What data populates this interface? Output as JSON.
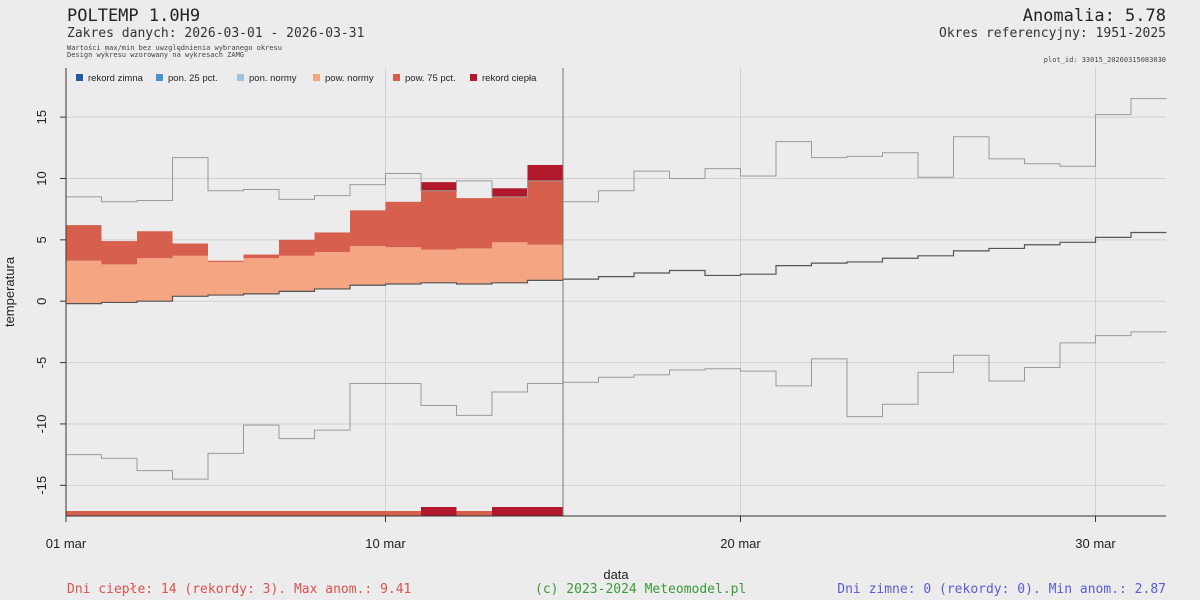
{
  "header": {
    "title": "POLTEMP 1.0H9",
    "range": "Zakres danych: 2026-03-01 - 2026-03-31",
    "note1": "Wartości max/min bez uwzględnienia wybranego okresu",
    "note2": "Design wykresu wzorowany na wykresach ZAMG",
    "anomaly": "Anomalia: 5.78",
    "reference": "Okres referencyjny: 1951-2025",
    "plot_id": "plot_id: 33015_20260315083030"
  },
  "footer": {
    "warm": "Dni ciepłe:  14 (rekordy: 3). Max anom.: 9.41",
    "copyright": "(c) 2023-2024 Meteomodel.pl",
    "cold": "Dni zimne:  0 (rekordy: 0). Min anom.: 2.87"
  },
  "colors": {
    "rekord_zimna": "#1f5aa6",
    "pon_25": "#4a92c8",
    "pon_normy": "#9cc3e2",
    "pow_normy": "#f4a582",
    "pow_75": "#d6604d",
    "rekord_ciepla": "#b2182b",
    "envelope": "#9a9a9a",
    "normal": "#555555"
  },
  "chart_data": {
    "type": "area",
    "xlabel": "data",
    "ylabel": "temperatura",
    "ylim": [
      -17.5,
      19
    ],
    "yticks": [
      -15,
      -10,
      -5,
      0,
      5,
      10,
      15
    ],
    "xticks": [
      {
        "day": 1,
        "label": "01 mar"
      },
      {
        "day": 10,
        "label": "10 mar"
      },
      {
        "day": 20,
        "label": "20 mar"
      },
      {
        "day": 30,
        "label": "30 mar"
      }
    ],
    "legend": [
      {
        "key": "rekord_zimna",
        "label": "rekord zimna"
      },
      {
        "key": "pon_25",
        "label": "pon. 25 pct."
      },
      {
        "key": "pon_normy",
        "label": "pon. normy"
      },
      {
        "key": "pow_normy",
        "label": "pow. normy"
      },
      {
        "key": "pow_75",
        "label": "pow. 75 pct."
      },
      {
        "key": "rekord_ciepla",
        "label": "rekord ciepła"
      }
    ],
    "legend_position": "top-left",
    "days": [
      1,
      2,
      3,
      4,
      5,
      6,
      7,
      8,
      9,
      10,
      11,
      12,
      13,
      14,
      15,
      16,
      17,
      18,
      19,
      20,
      21,
      22,
      23,
      24,
      25,
      26,
      27,
      28,
      29,
      30,
      31
    ],
    "observed": [
      6.2,
      4.9,
      5.7,
      4.7,
      3.3,
      3.8,
      5.0,
      5.6,
      7.4,
      8.1,
      9.7,
      8.4,
      9.2,
      11.1
    ],
    "normal": [
      -0.2,
      -0.1,
      0.0,
      0.4,
      0.5,
      0.6,
      0.8,
      1.0,
      1.3,
      1.4,
      1.5,
      1.4,
      1.5,
      1.7,
      1.8,
      2.0,
      2.3,
      2.5,
      2.1,
      2.2,
      2.9,
      3.1,
      3.2,
      3.5,
      3.7,
      4.1,
      4.3,
      4.6,
      4.8,
      5.2,
      5.6
    ],
    "p75": [
      3.3,
      3.0,
      3.5,
      3.7,
      3.2,
      3.5,
      3.7,
      4.0,
      4.5,
      4.4,
      4.2,
      4.3,
      4.8,
      4.6
    ],
    "record_max": [
      8.5,
      8.1,
      8.2,
      11.7,
      9.0,
      9.1,
      8.3,
      8.6,
      9.5,
      10.4,
      9.0,
      9.8,
      8.5,
      9.8,
      8.1,
      9.0,
      10.6,
      10.0,
      10.8,
      10.2,
      13.0,
      11.7,
      11.8,
      12.1,
      10.1,
      13.4,
      11.6,
      11.2,
      11.0,
      15.2,
      16.5
    ],
    "record_min": [
      -12.5,
      -12.8,
      -13.8,
      -14.5,
      -12.4,
      -10.1,
      -11.2,
      -10.5,
      -6.7,
      -6.7,
      -8.5,
      -9.3,
      -7.4,
      -6.7,
      -6.6,
      -6.2,
      -6.0,
      -5.6,
      -5.5,
      -5.7,
      -6.9,
      -4.7,
      -9.4,
      -8.4,
      -5.8,
      -4.4,
      -6.5,
      -5.4,
      -3.4,
      -2.8,
      -2.5
    ],
    "day_markers": [
      "pow_75",
      "pow_75",
      "pow_75",
      "pow_75",
      "pow_75",
      "pow_75",
      "pow_75",
      "pow_75",
      "pow_75",
      "pow_75",
      "rekord_ciepla",
      "pow_75",
      "rekord_ciepla",
      "rekord_ciepla"
    ]
  }
}
